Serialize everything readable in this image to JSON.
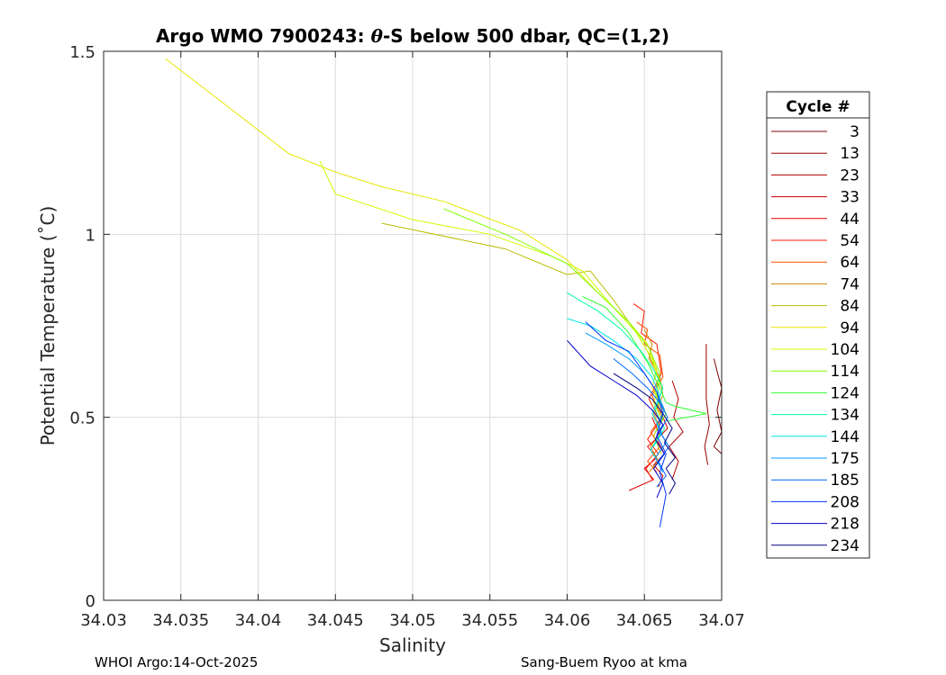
{
  "chart_data": {
    "type": "line",
    "title_prefix": "Argo WMO 7900243: ",
    "title_theta": "θ",
    "title_suffix": "-S below 500 dbar,  QC=(1,2)",
    "xlabel": "Salinity",
    "ylabel": "Potential Temperature (˚C)",
    "xlim": [
      34.03,
      34.07
    ],
    "ylim": [
      0,
      1.5
    ],
    "xticks": [
      34.03,
      34.035,
      34.04,
      34.045,
      34.05,
      34.055,
      34.06,
      34.065,
      34.07
    ],
    "xtick_labels": [
      "34.03",
      "34.035",
      "34.04",
      "34.045",
      "34.05",
      "34.055",
      "34.06",
      "34.065",
      "34.07"
    ],
    "yticks": [
      0,
      0.5,
      1,
      1.5
    ],
    "ytick_labels": [
      "0",
      "0.5",
      "1",
      "1.5"
    ],
    "grid": true,
    "legend_title": "Cycle #",
    "legend_position": "outside-right",
    "series": [
      {
        "name": "3",
        "color": "#800000",
        "x": [
          34.0695,
          34.0698,
          34.07,
          34.0697,
          34.07,
          34.0695,
          34.07
        ],
        "y": [
          0.66,
          0.61,
          0.58,
          0.52,
          0.46,
          0.42,
          0.4
        ]
      },
      {
        "name": "13",
        "color": "#990000",
        "x": [
          34.069,
          34.069,
          34.0692,
          34.0689,
          34.0691
        ],
        "y": [
          0.7,
          0.55,
          0.48,
          0.42,
          0.37
        ]
      },
      {
        "name": "23",
        "color": "#b30000",
        "x": [
          34.0668,
          34.0672,
          34.0669,
          34.0675,
          34.0666,
          34.0672,
          34.0668
        ],
        "y": [
          0.6,
          0.55,
          0.5,
          0.46,
          0.42,
          0.38,
          0.33
        ]
      },
      {
        "name": "33",
        "color": "#cc0000",
        "x": [
          34.066,
          34.0665,
          34.0658,
          34.0663,
          34.0656,
          34.0662,
          34.0659
        ],
        "y": [
          0.52,
          0.47,
          0.44,
          0.4,
          0.37,
          0.34,
          0.31
        ]
      },
      {
        "name": "44",
        "color": "#e60000",
        "x": [
          34.0655,
          34.066,
          34.0652,
          34.0658,
          34.065,
          34.0656,
          34.064
        ],
        "y": [
          0.5,
          0.45,
          0.42,
          0.39,
          0.36,
          0.33,
          0.3
        ]
      },
      {
        "name": "54",
        "color": "#ff1a00",
        "x": [
          34.0643,
          34.065,
          34.0648,
          34.0658,
          34.0661,
          34.0653,
          34.066,
          34.0652,
          34.0659,
          34.0651,
          34.0655
        ],
        "y": [
          0.81,
          0.79,
          0.73,
          0.7,
          0.62,
          0.55,
          0.49,
          0.44,
          0.4,
          0.36,
          0.33
        ]
      },
      {
        "name": "64",
        "color": "#ff4d00",
        "x": [
          34.0645,
          34.0652,
          34.065,
          34.066,
          34.0662,
          34.0655,
          34.0661,
          34.0654,
          34.066,
          34.0652,
          34.0658
        ],
        "y": [
          0.76,
          0.74,
          0.7,
          0.67,
          0.61,
          0.56,
          0.5,
          0.46,
          0.42,
          0.38,
          0.35
        ]
      },
      {
        "name": "74",
        "color": "#cc8800",
        "x": [
          34.065,
          34.0655,
          34.0653,
          34.066,
          34.0662,
          34.0656,
          34.0661,
          34.0654,
          34.0659,
          34.0653
        ],
        "y": [
          0.74,
          0.7,
          0.66,
          0.61,
          0.56,
          0.51,
          0.46,
          0.42,
          0.38,
          0.35
        ]
      },
      {
        "name": "84",
        "color": "#bbbb00",
        "x": [
          34.048,
          34.056,
          34.06,
          34.0615,
          34.063,
          34.0645,
          34.0652,
          34.066,
          34.0658,
          34.0662,
          34.0656,
          34.0661
        ],
        "y": [
          1.03,
          0.96,
          0.89,
          0.9,
          0.82,
          0.73,
          0.68,
          0.6,
          0.55,
          0.5,
          0.45,
          0.4
        ]
      },
      {
        "name": "94",
        "color": "#e6e600",
        "x": [
          34.034,
          34.042,
          34.045,
          34.048,
          34.052,
          34.057,
          34.06,
          34.062,
          34.064,
          34.0652,
          34.0658,
          34.0655,
          34.0662
        ],
        "y": [
          1.48,
          1.22,
          1.17,
          1.13,
          1.09,
          1.01,
          0.93,
          0.84,
          0.76,
          0.7,
          0.63,
          0.58,
          0.52
        ]
      },
      {
        "name": "104",
        "color": "#ccff00",
        "x": [
          34.044,
          34.045,
          34.05,
          34.055,
          34.059,
          34.061,
          34.063,
          34.0645,
          34.0655,
          34.066,
          34.0656,
          34.0662
        ],
        "y": [
          1.2,
          1.11,
          1.04,
          1.0,
          0.94,
          0.9,
          0.8,
          0.73,
          0.66,
          0.59,
          0.54,
          0.49
        ]
      },
      {
        "name": "114",
        "color": "#80ff00",
        "x": [
          34.052,
          34.056,
          34.06,
          34.062,
          34.064,
          34.0653,
          34.066,
          34.0657,
          34.0664,
          34.0657
        ],
        "y": [
          1.07,
          1.0,
          0.92,
          0.84,
          0.76,
          0.69,
          0.62,
          0.57,
          0.51,
          0.46
        ]
      },
      {
        "name": "124",
        "color": "#33ff33",
        "x": [
          34.061,
          34.0625,
          34.064,
          34.0652,
          34.066,
          34.0664,
          34.067,
          34.069,
          34.0665
        ],
        "y": [
          0.83,
          0.8,
          0.73,
          0.65,
          0.58,
          0.54,
          0.53,
          0.51,
          0.49
        ]
      },
      {
        "name": "134",
        "color": "#00ffa0",
        "x": [
          34.06,
          34.062,
          34.0635,
          34.0648,
          34.0656,
          34.0662,
          34.0657,
          34.0663,
          34.0656
        ],
        "y": [
          0.84,
          0.79,
          0.74,
          0.68,
          0.63,
          0.58,
          0.52,
          0.47,
          0.42
        ]
      },
      {
        "name": "144",
        "color": "#00e6e6",
        "x": [
          34.06,
          34.0615,
          34.063,
          34.0645,
          34.0655,
          34.066,
          34.0655,
          34.0661,
          34.0654,
          34.066
        ],
        "y": [
          0.77,
          0.75,
          0.71,
          0.66,
          0.61,
          0.56,
          0.51,
          0.46,
          0.41,
          0.37
        ]
      },
      {
        "name": "175",
        "color": "#0099ff",
        "x": [
          34.0612,
          34.0625,
          34.064,
          34.065,
          34.0658,
          34.0663,
          34.0658,
          34.0664,
          34.0657,
          34.0662
        ],
        "y": [
          0.73,
          0.7,
          0.66,
          0.62,
          0.57,
          0.52,
          0.48,
          0.43,
          0.39,
          0.35
        ]
      },
      {
        "name": "185",
        "color": "#0066ff",
        "x": [
          34.063,
          34.0642,
          34.0652,
          34.066,
          34.0665,
          34.066,
          34.0666,
          34.0659,
          34.0664,
          34.0658
        ],
        "y": [
          0.66,
          0.62,
          0.58,
          0.54,
          0.5,
          0.46,
          0.42,
          0.38,
          0.34,
          0.31
        ]
      },
      {
        "name": "208",
        "color": "#0033ff",
        "x": [
          34.0612,
          34.0625,
          34.064,
          34.065,
          34.0658,
          34.0662,
          34.0658,
          34.0664,
          34.066,
          34.0664,
          34.066
        ],
        "y": [
          0.76,
          0.71,
          0.68,
          0.62,
          0.57,
          0.51,
          0.45,
          0.4,
          0.35,
          0.29,
          0.2
        ]
      },
      {
        "name": "218",
        "color": "#0000cc",
        "x": [
          34.06,
          34.0615,
          34.063,
          34.0645,
          34.0655,
          34.0662,
          34.0657,
          34.0663,
          34.0656,
          34.0662,
          34.0658
        ],
        "y": [
          0.71,
          0.64,
          0.6,
          0.56,
          0.52,
          0.48,
          0.44,
          0.4,
          0.36,
          0.32,
          0.28
        ]
      },
      {
        "name": "234",
        "color": "#000080",
        "x": [
          34.063,
          34.0645,
          34.0655,
          34.0662,
          34.0668,
          34.0663,
          34.067,
          34.0664,
          34.067,
          34.0666
        ],
        "y": [
          0.62,
          0.58,
          0.55,
          0.51,
          0.47,
          0.43,
          0.39,
          0.36,
          0.32,
          0.29
        ]
      }
    ]
  },
  "footer": {
    "left": "WHOI Argo:14-Oct-2025",
    "right": "Sang-Buem Ryoo at kma"
  }
}
